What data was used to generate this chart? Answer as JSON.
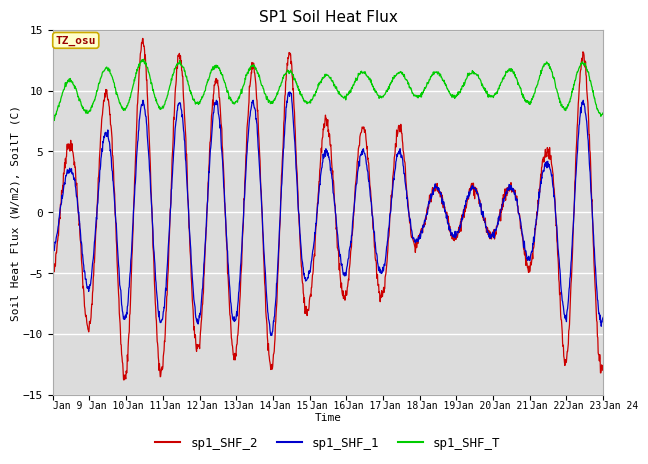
{
  "title": "SP1 Soil Heat Flux",
  "xlabel": "Time",
  "ylabel": "Soil Heat Flux (W/m2), SoilT (C)",
  "ylim": [
    -15,
    15
  ],
  "yticks": [
    -15,
    -10,
    -5,
    0,
    5,
    10,
    15
  ],
  "x_tick_labels": [
    "Jan 9",
    "Jan 10",
    "Jan 11",
    "Jan 12",
    "Jan 13",
    "Jan 14",
    "Jan 15",
    "Jan 16",
    "Jan 17",
    "Jan 18",
    "Jan 19",
    "Jan 20",
    "Jan 21",
    "Jan 22",
    "Jan 23",
    "Jan 24"
  ],
  "legend_labels": [
    "sp1_SHF_2",
    "sp1_SHF_1",
    "sp1_SHF_T"
  ],
  "tz_label": "TZ_osu",
  "bg_color": "#dcdcdc",
  "line_color_shf2": "#cc0000",
  "line_color_shf1": "#0000cc",
  "line_color_shfT": "#00cc00",
  "grid_color": "#ffffff",
  "title_fontsize": 11,
  "tick_fontsize": 7,
  "ylabel_fontsize": 8,
  "xlabel_fontsize": 8,
  "legend_fontsize": 9
}
